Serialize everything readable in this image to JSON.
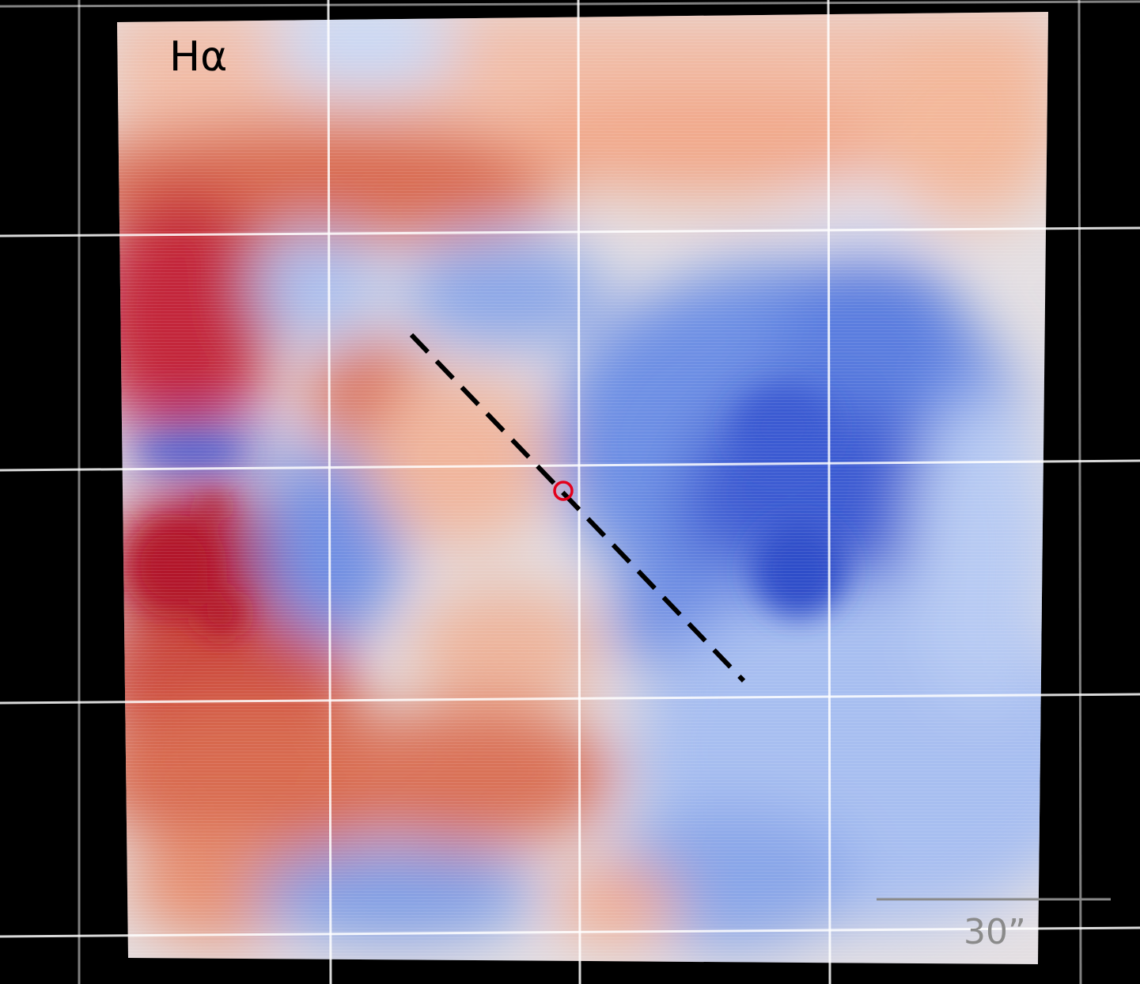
{
  "image": {
    "title": "Hα",
    "scalebar_label": "30”",
    "colors": {
      "background": "#000000",
      "red_strong": "#b2182b",
      "red_mid": "#d6604d",
      "red_light": "#f4a582",
      "neutral": "#e8e4e6",
      "blue_light": "#b9cdf3",
      "blue_mid": "#7e9fe6",
      "blue_strong": "#3a5bd6",
      "grid": "#ffffff",
      "slit": "#000000",
      "marker": "#e3001b",
      "scalebar": "#8a8a8a"
    }
  }
}
